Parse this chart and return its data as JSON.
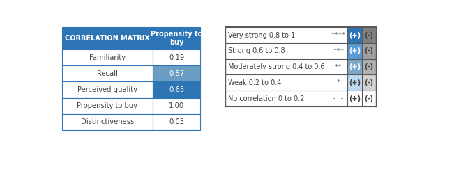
{
  "left_table": {
    "header": [
      "CORRELATION MATRIX",
      "Propensity to\nbuy"
    ],
    "rows": [
      [
        "Familiarity",
        "0.19"
      ],
      [
        "Recall",
        "0.57"
      ],
      [
        "Perceived quality",
        "0.65"
      ],
      [
        "Propensity to buy",
        "1.00"
      ],
      [
        "Distinctiveness",
        "0.03"
      ]
    ],
    "header_bg": "#2e75b6",
    "header_text_color": "#ffffff",
    "row_bg_default": "#ffffff",
    "highlight_rows": [
      1,
      2
    ],
    "highlight_colors": [
      "#6a9ec2",
      "#2e75b6"
    ],
    "highlight_text_colors": [
      "#ffffff",
      "#ffffff"
    ],
    "border_color": "#2e75b6",
    "text_color": "#404040"
  },
  "right_table": {
    "rows": [
      {
        "label": "Very strong 0.8 to 1",
        "symbol": "****",
        "pos_bg": "#2e75b6",
        "neg_bg": "#808080"
      },
      {
        "label": "Strong 0.6 to 0.8",
        "symbol": "***",
        "pos_bg": "#5b9bd5",
        "neg_bg": "#a0a0a0"
      },
      {
        "label": "Moderately strong 0.4 to 0.6",
        "symbol": "**",
        "pos_bg": "#7ba7c9",
        "neg_bg": "#b0b0b0"
      },
      {
        "label": "Weak 0.2 to 0.4",
        "symbol": "*",
        "pos_bg": "#bdd7ee",
        "neg_bg": "#d0d0d0"
      },
      {
        "label": "No correlation 0 to 0.2",
        "symbol": "- -",
        "pos_bg": "#ffffff",
        "neg_bg": "#ffffff"
      }
    ],
    "pos_label": "(+)",
    "neg_label": "(-)",
    "border_color": "#595959",
    "text_color": "#404040"
  },
  "fig_w": 6.61,
  "fig_h": 2.6,
  "dpi": 100
}
